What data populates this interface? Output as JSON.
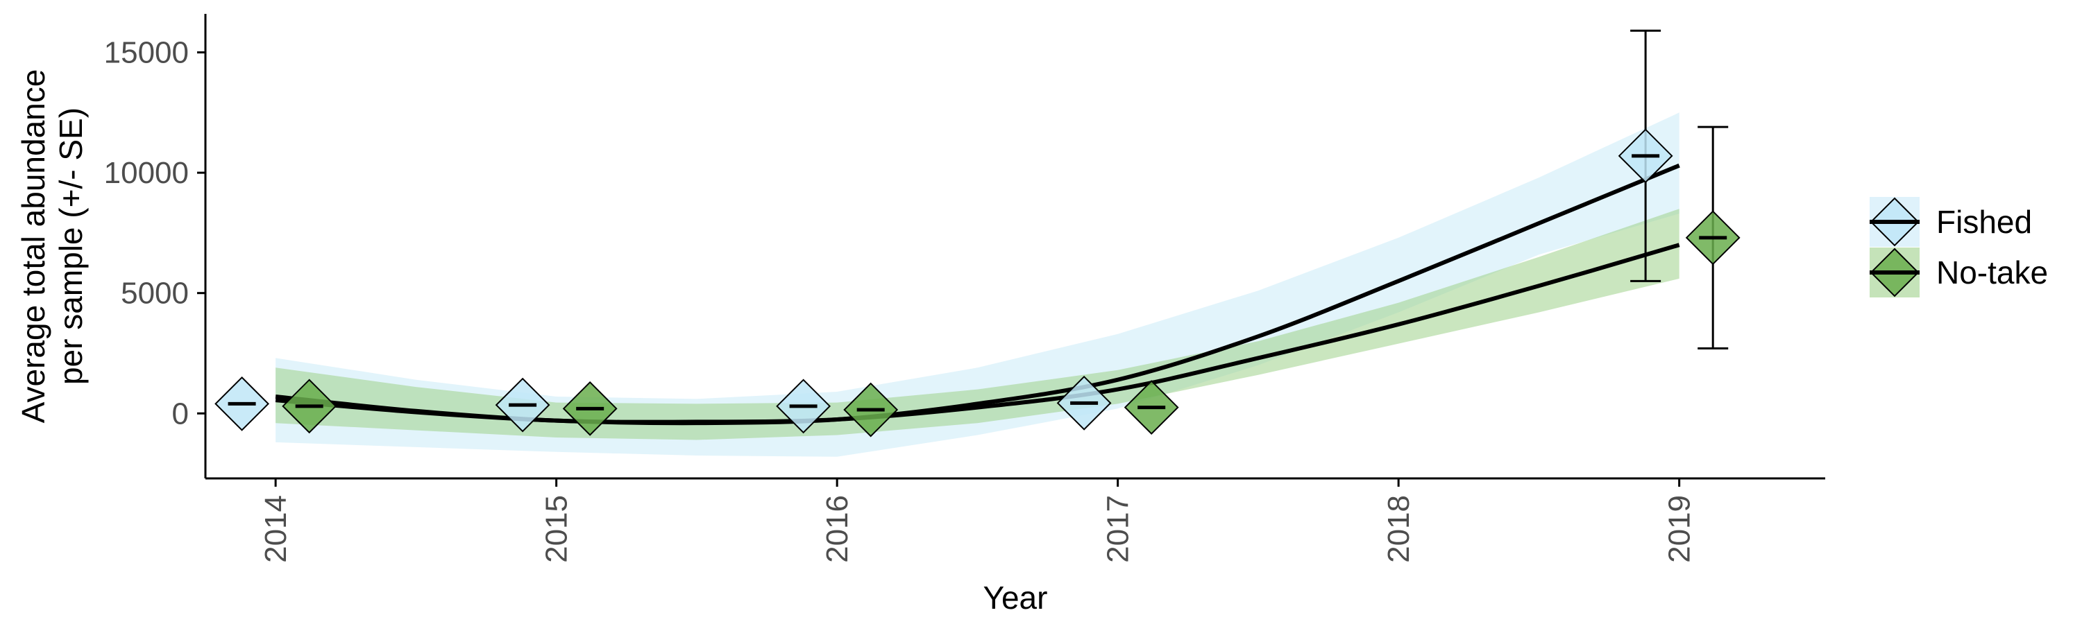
{
  "chart_data": {
    "type": "scatter",
    "xlabel": "Year",
    "ylabel_lines": [
      "Average total abundance",
      "per sample (+/- SE)"
    ],
    "x_ticks": [
      "2014",
      "2015",
      "2016",
      "2017",
      "2018",
      "2019"
    ],
    "y_ticks": [
      "0",
      "5000",
      "10000",
      "15000"
    ],
    "xlim": [
      2013.75,
      2019.52
    ],
    "ylim": [
      -2700,
      16600
    ],
    "grid": false,
    "legend_position": "right",
    "series": [
      {
        "name": "Fished",
        "color": "#bfe6f7",
        "ribbon_color": "#bfe6f7",
        "points": [
          {
            "x": 2014,
            "y": 400
          },
          {
            "x": 2015,
            "y": 350
          },
          {
            "x": 2016,
            "y": 300
          },
          {
            "x": 2017,
            "y": 430
          },
          {
            "x": 2019,
            "y": 10700,
            "ymin": 5500,
            "ymax": 15900
          }
        ],
        "fit": {
          "x": [
            2014,
            2014.5,
            2015,
            2015.5,
            2016,
            2016.5,
            2017,
            2017.5,
            2018,
            2018.5,
            2019
          ],
          "y": [
            550,
            50,
            -300,
            -400,
            -250,
            400,
            1400,
            3200,
            5500,
            7900,
            10300
          ],
          "lower": [
            -1200,
            -1400,
            -1600,
            -1750,
            -1800,
            -900,
            200,
            2000,
            4200,
            6600,
            8300
          ],
          "upper": [
            2300,
            1400,
            700,
            600,
            900,
            1900,
            3300,
            5100,
            7300,
            9800,
            12500
          ]
        }
      },
      {
        "name": "No-take",
        "color": "#6aae4e",
        "ribbon_color": "#9fd18a",
        "points": [
          {
            "x": 2014,
            "y": 300
          },
          {
            "x": 2015,
            "y": 200
          },
          {
            "x": 2016,
            "y": 150
          },
          {
            "x": 2017,
            "y": 250
          },
          {
            "x": 2019,
            "y": 7300,
            "ymin": 2700,
            "ymax": 11900
          }
        ],
        "fit": {
          "x": [
            2014,
            2014.5,
            2015,
            2015.5,
            2016,
            2016.5,
            2017,
            2017.5,
            2018,
            2018.5,
            2019
          ],
          "y": [
            700,
            100,
            -300,
            -350,
            -250,
            250,
            1000,
            2300,
            3700,
            5300,
            7000
          ],
          "lower": [
            -400,
            -700,
            -1000,
            -1100,
            -900,
            -400,
            400,
            1600,
            2900,
            4200,
            5600
          ],
          "upper": [
            1900,
            1100,
            450,
            400,
            450,
            1000,
            1800,
            3000,
            4600,
            6500,
            8500
          ]
        }
      }
    ]
  }
}
